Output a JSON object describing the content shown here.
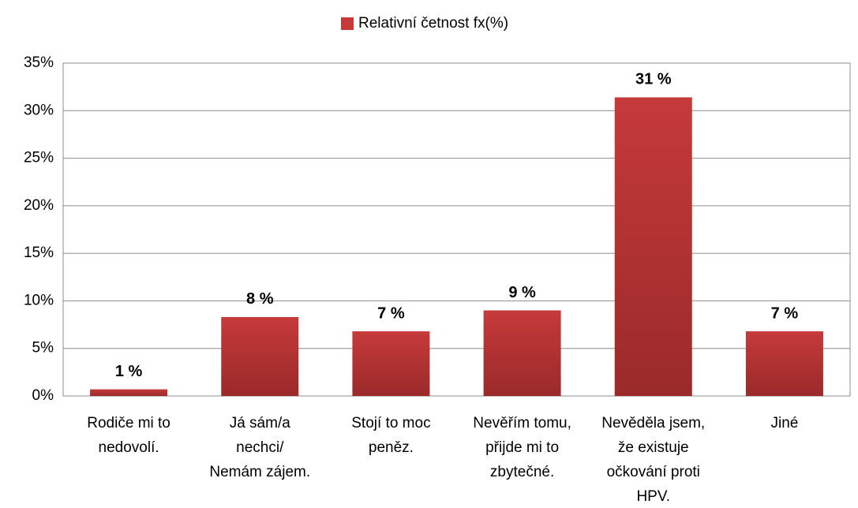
{
  "chart_data": {
    "type": "bar",
    "categories": [
      [
        "Rodiče mi to",
        "nedovolí."
      ],
      [
        "Já sám/a",
        "nechci/",
        "Nemám zájem."
      ],
      [
        "Stojí to moc",
        "peněz."
      ],
      [
        "Nevěřím tomu,",
        "přijde mi to",
        "zbytečné."
      ],
      [
        "Nevěděla jsem,",
        "že existuje",
        "očkování proti",
        "HPV."
      ],
      [
        "Jiné"
      ]
    ],
    "series": [
      {
        "name": "Relativní četnost fx(%)",
        "color": "#c63a3a",
        "values": [
          0.7,
          8.3,
          6.8,
          9,
          31.4,
          6.8
        ],
        "value_labels": [
          "1 %",
          "8 %",
          "7 %",
          "9 %",
          "31 %",
          "7 %"
        ]
      }
    ],
    "ylim": [
      0,
      35
    ],
    "yticks": [
      {
        "value": 0,
        "label": "0%"
      },
      {
        "value": 5,
        "label": "5%"
      },
      {
        "value": 10,
        "label": "10%"
      },
      {
        "value": 15,
        "label": "15%"
      },
      {
        "value": 20,
        "label": "20%"
      },
      {
        "value": 25,
        "label": "25%"
      },
      {
        "value": 30,
        "label": "30%"
      },
      {
        "value": 35,
        "label": "35%"
      }
    ],
    "grid": true,
    "legend": "top"
  }
}
